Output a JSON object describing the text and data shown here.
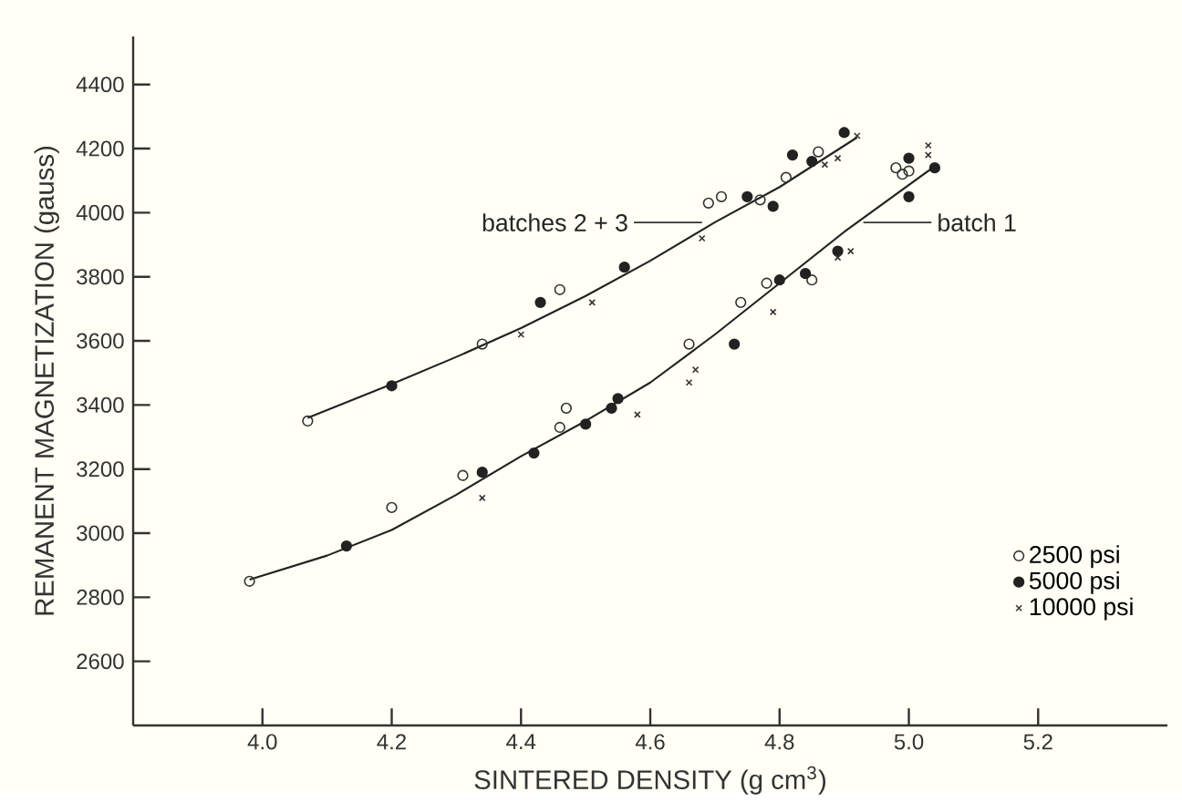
{
  "chart_data": {
    "type": "scatter",
    "xlabel": "SINTERED   DENSITY   (g cm$^{3}$)",
    "ylabel": "REMANENT   MAGNETIZATION   (gauss)",
    "xlim": [
      3.8,
      5.4
    ],
    "ylim": [
      2400,
      4550
    ],
    "xticks": [
      {
        "value": 4.0,
        "label": "4.0"
      },
      {
        "value": 4.2,
        "label": "4.2"
      },
      {
        "value": 4.4,
        "label": "4.4"
      },
      {
        "value": 4.6,
        "label": "4.6"
      },
      {
        "value": 4.8,
        "label": "4.8"
      },
      {
        "value": 5.0,
        "label": "5.0"
      },
      {
        "value": 5.2,
        "label": "5.2"
      }
    ],
    "yticks": [
      2600,
      2800,
      3000,
      3200,
      3400,
      3600,
      3800,
      4000,
      4200,
      4400
    ],
    "grid": false,
    "legend": "bottom right",
    "series": [
      {
        "name": "2500 psi",
        "color": "#333333",
        "marker": "circle",
        "x": [
          4.07,
          4.34,
          4.46,
          4.69,
          4.71,
          4.77,
          4.81,
          4.86,
          3.98,
          4.2,
          4.31,
          4.46,
          4.47,
          4.66,
          4.74,
          4.78,
          4.85,
          4.98,
          4.99,
          5.0
        ],
        "values": [
          3350,
          3590,
          3760,
          4030,
          4050,
          4040,
          4110,
          4190,
          2850,
          3080,
          3180,
          3330,
          3390,
          3590,
          3720,
          3780,
          3790,
          4140,
          4120,
          4130
        ]
      },
      {
        "name": "5000 psi",
        "color": "#222222",
        "marker": "circle",
        "x": [
          4.2,
          4.43,
          4.56,
          4.75,
          4.79,
          4.82,
          4.85,
          4.9,
          4.13,
          4.34,
          4.42,
          4.5,
          4.54,
          4.55,
          4.73,
          4.8,
          4.84,
          4.89,
          5.0,
          5.0,
          5.04
        ],
        "values": [
          3460,
          3720,
          3830,
          4050,
          4020,
          4180,
          4160,
          4250,
          2960,
          3190,
          3250,
          3340,
          3390,
          3420,
          3590,
          3790,
          3810,
          3880,
          4170,
          4050,
          4140
        ]
      },
      {
        "name": "10000 psi",
        "color": "#333333",
        "marker": "cross",
        "x": [
          4.4,
          4.51,
          4.68,
          4.87,
          4.89,
          4.92,
          4.34,
          4.58,
          4.67,
          4.66,
          4.79,
          4.89,
          4.91,
          5.03,
          5.03
        ],
        "values": [
          3620,
          3720,
          3920,
          4150,
          4170,
          4240,
          3110,
          3370,
          3510,
          3470,
          3690,
          3860,
          3880,
          4210,
          4180
        ]
      },
      {
        "type": "line",
        "color": "#222222",
        "marker": "none",
        "x": [
          4.07,
          4.2,
          4.3,
          4.4,
          4.5,
          4.6,
          4.7,
          4.8,
          4.92
        ],
        "values": [
          3360,
          3465,
          3550,
          3640,
          3740,
          3850,
          3970,
          4080,
          4235
        ]
      },
      {
        "type": "line",
        "color": "#222222",
        "marker": "none",
        "x": [
          3.98,
          4.1,
          4.2,
          4.3,
          4.4,
          4.5,
          4.6,
          4.7,
          4.8,
          4.9,
          5.04
        ],
        "values": [
          2855,
          2930,
          3010,
          3120,
          3240,
          3350,
          3470,
          3620,
          3780,
          3940,
          4145
        ]
      }
    ],
    "annotations": [
      "batches  2 + 3",
      "batch  1"
    ]
  }
}
